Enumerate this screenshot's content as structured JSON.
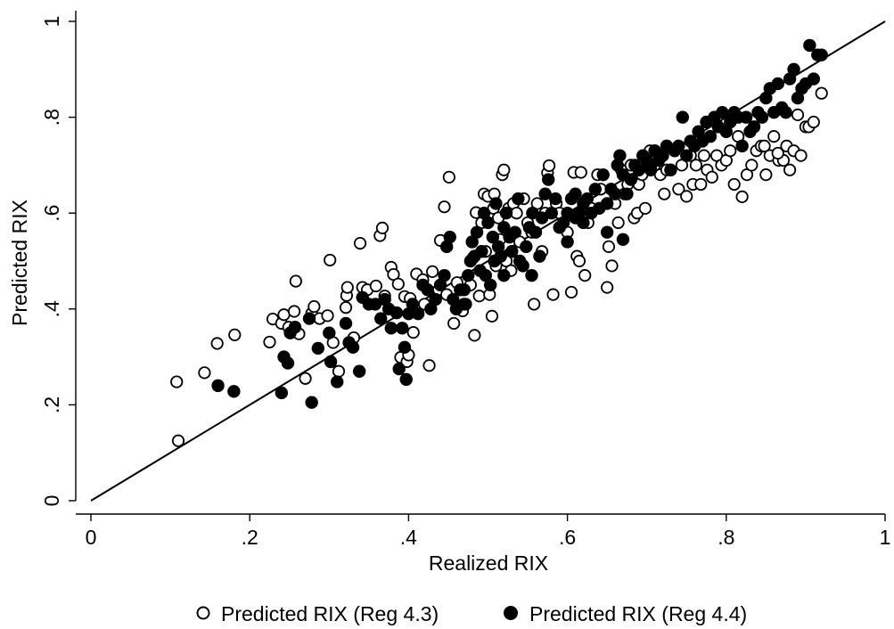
{
  "chart_data": {
    "type": "scatter",
    "title": "",
    "xlabel": "Realized RIX",
    "ylabel": "Predicted RIX",
    "xlim": [
      0,
      1
    ],
    "ylim": [
      0,
      1
    ],
    "x_ticks": [
      "0",
      ".2",
      ".4",
      ".6",
      ".8",
      "1"
    ],
    "y_ticks": [
      "0",
      ".2",
      ".4",
      ".6",
      ".8",
      "1"
    ],
    "reference_line": {
      "from": [
        0,
        0
      ],
      "to": [
        1,
        1
      ]
    },
    "grid": false,
    "legend_position": "bottom",
    "series": [
      {
        "name": "Predicted RIX (Reg 4.3)",
        "marker": "hollow-circle",
        "color": "#000000",
        "points": [
          [
            0.11,
            0.125
          ],
          [
            0.108,
            0.248
          ],
          [
            0.143,
            0.267
          ],
          [
            0.159,
            0.328
          ],
          [
            0.181,
            0.346
          ],
          [
            0.225,
            0.331
          ],
          [
            0.229,
            0.379
          ],
          [
            0.24,
            0.37
          ],
          [
            0.243,
            0.388
          ],
          [
            0.249,
            0.362
          ],
          [
            0.256,
            0.395
          ],
          [
            0.258,
            0.458
          ],
          [
            0.262,
            0.348
          ],
          [
            0.27,
            0.255
          ],
          [
            0.278,
            0.391
          ],
          [
            0.281,
            0.405
          ],
          [
            0.288,
            0.38
          ],
          [
            0.298,
            0.386
          ],
          [
            0.301,
            0.502
          ],
          [
            0.305,
            0.33
          ],
          [
            0.312,
            0.27
          ],
          [
            0.321,
            0.403
          ],
          [
            0.322,
            0.428
          ],
          [
            0.323,
            0.445
          ],
          [
            0.331,
            0.34
          ],
          [
            0.339,
            0.537
          ],
          [
            0.342,
            0.445
          ],
          [
            0.348,
            0.44
          ],
          [
            0.359,
            0.448
          ],
          [
            0.364,
            0.553
          ],
          [
            0.367,
            0.569
          ],
          [
            0.37,
            0.427
          ],
          [
            0.378,
            0.487
          ],
          [
            0.381,
            0.472
          ],
          [
            0.387,
            0.452
          ],
          [
            0.39,
            0.299
          ],
          [
            0.395,
            0.426
          ],
          [
            0.398,
            0.29
          ],
          [
            0.4,
            0.304
          ],
          [
            0.402,
            0.422
          ],
          [
            0.406,
            0.351
          ],
          [
            0.41,
            0.473
          ],
          [
            0.418,
            0.461
          ],
          [
            0.42,
            0.41
          ],
          [
            0.426,
            0.282
          ],
          [
            0.43,
            0.478
          ],
          [
            0.438,
            0.44
          ],
          [
            0.44,
            0.543
          ],
          [
            0.445,
            0.613
          ],
          [
            0.448,
            0.43
          ],
          [
            0.451,
            0.675
          ],
          [
            0.457,
            0.37
          ],
          [
            0.461,
            0.455
          ],
          [
            0.468,
            0.396
          ],
          [
            0.472,
            0.41
          ],
          [
            0.478,
            0.45
          ],
          [
            0.481,
            0.506
          ],
          [
            0.483,
            0.345
          ],
          [
            0.485,
            0.601
          ],
          [
            0.489,
            0.427
          ],
          [
            0.492,
            0.58
          ],
          [
            0.495,
            0.64
          ],
          [
            0.497,
            0.52
          ],
          [
            0.5,
            0.635
          ],
          [
            0.502,
            0.43
          ],
          [
            0.505,
            0.385
          ],
          [
            0.507,
            0.61
          ],
          [
            0.508,
            0.64
          ],
          [
            0.51,
            0.49
          ],
          [
            0.513,
            0.59
          ],
          [
            0.515,
            0.545
          ],
          [
            0.518,
            0.68
          ],
          [
            0.52,
            0.69
          ],
          [
            0.523,
            0.5
          ],
          [
            0.526,
            0.61
          ],
          [
            0.529,
            0.48
          ],
          [
            0.532,
            0.62
          ],
          [
            0.536,
            0.6
          ],
          [
            0.54,
            0.54
          ],
          [
            0.545,
            0.63
          ],
          [
            0.55,
            0.58
          ],
          [
            0.555,
            0.56
          ],
          [
            0.558,
            0.41
          ],
          [
            0.562,
            0.62
          ],
          [
            0.568,
            0.52
          ],
          [
            0.572,
            0.6
          ],
          [
            0.575,
            0.684
          ],
          [
            0.577,
            0.699
          ],
          [
            0.582,
            0.43
          ],
          [
            0.586,
            0.62
          ],
          [
            0.59,
            0.6
          ],
          [
            0.6,
            0.56
          ],
          [
            0.605,
            0.435
          ],
          [
            0.608,
            0.685
          ],
          [
            0.612,
            0.51
          ],
          [
            0.615,
            0.5
          ],
          [
            0.617,
            0.685
          ],
          [
            0.622,
            0.47
          ],
          [
            0.626,
            0.58
          ],
          [
            0.63,
            0.61
          ],
          [
            0.638,
            0.68
          ],
          [
            0.642,
            0.65
          ],
          [
            0.65,
            0.445
          ],
          [
            0.652,
            0.53
          ],
          [
            0.656,
            0.49
          ],
          [
            0.66,
            0.62
          ],
          [
            0.664,
            0.58
          ],
          [
            0.668,
            0.69
          ],
          [
            0.672,
            0.64
          ],
          [
            0.676,
            0.66
          ],
          [
            0.68,
            0.7
          ],
          [
            0.684,
            0.59
          ],
          [
            0.688,
            0.6
          ],
          [
            0.69,
            0.66
          ],
          [
            0.694,
            0.68
          ],
          [
            0.698,
            0.61
          ],
          [
            0.704,
            0.73
          ],
          [
            0.71,
            0.7
          ],
          [
            0.717,
            0.68
          ],
          [
            0.722,
            0.64
          ],
          [
            0.725,
            0.69
          ],
          [
            0.73,
            0.69
          ],
          [
            0.74,
            0.65
          ],
          [
            0.744,
            0.7
          ],
          [
            0.75,
            0.635
          ],
          [
            0.755,
            0.72
          ],
          [
            0.758,
            0.66
          ],
          [
            0.762,
            0.7
          ],
          [
            0.768,
            0.66
          ],
          [
            0.772,
            0.72
          ],
          [
            0.776,
            0.69
          ],
          [
            0.782,
            0.675
          ],
          [
            0.788,
            0.72
          ],
          [
            0.794,
            0.7
          ],
          [
            0.8,
            0.71
          ],
          [
            0.805,
            0.73
          ],
          [
            0.81,
            0.66
          ],
          [
            0.815,
            0.76
          ],
          [
            0.82,
            0.634
          ],
          [
            0.826,
            0.68
          ],
          [
            0.832,
            0.7
          ],
          [
            0.838,
            0.73
          ],
          [
            0.844,
            0.74
          ],
          [
            0.85,
            0.68
          ],
          [
            0.855,
            0.72
          ],
          [
            0.86,
            0.76
          ],
          [
            0.866,
            0.71
          ],
          [
            0.872,
            0.71
          ],
          [
            0.876,
            0.74
          ],
          [
            0.88,
            0.69
          ],
          [
            0.885,
            0.73
          ],
          [
            0.89,
            0.805
          ],
          [
            0.894,
            0.72
          ],
          [
            0.9,
            0.78
          ],
          [
            0.904,
            0.78
          ],
          [
            0.91,
            0.79
          ],
          [
            0.92,
            0.85
          ],
          [
            0.865,
            0.725
          ],
          [
            0.848,
            0.74
          ]
        ]
      },
      {
        "name": "Predicted RIX (Reg 4.4)",
        "marker": "filled-circle",
        "color": "#000000",
        "points": [
          [
            0.16,
            0.24
          ],
          [
            0.18,
            0.228
          ],
          [
            0.24,
            0.225
          ],
          [
            0.243,
            0.3
          ],
          [
            0.248,
            0.287
          ],
          [
            0.251,
            0.35
          ],
          [
            0.257,
            0.362
          ],
          [
            0.275,
            0.38
          ],
          [
            0.278,
            0.205
          ],
          [
            0.286,
            0.318
          ],
          [
            0.3,
            0.35
          ],
          [
            0.302,
            0.29
          ],
          [
            0.31,
            0.248
          ],
          [
            0.321,
            0.37
          ],
          [
            0.325,
            0.33
          ],
          [
            0.33,
            0.32
          ],
          [
            0.338,
            0.27
          ],
          [
            0.342,
            0.424
          ],
          [
            0.35,
            0.41
          ],
          [
            0.358,
            0.41
          ],
          [
            0.365,
            0.38
          ],
          [
            0.37,
            0.42
          ],
          [
            0.375,
            0.4
          ],
          [
            0.378,
            0.36
          ],
          [
            0.385,
            0.392
          ],
          [
            0.388,
            0.275
          ],
          [
            0.392,
            0.36
          ],
          [
            0.395,
            0.32
          ],
          [
            0.397,
            0.253
          ],
          [
            0.4,
            0.39
          ],
          [
            0.405,
            0.41
          ],
          [
            0.412,
            0.39
          ],
          [
            0.418,
            0.45
          ],
          [
            0.424,
            0.44
          ],
          [
            0.428,
            0.4
          ],
          [
            0.434,
            0.42
          ],
          [
            0.44,
            0.45
          ],
          [
            0.445,
            0.47
          ],
          [
            0.448,
            0.53
          ],
          [
            0.452,
            0.55
          ],
          [
            0.456,
            0.42
          ],
          [
            0.46,
            0.4
          ],
          [
            0.465,
            0.44
          ],
          [
            0.47,
            0.41
          ],
          [
            0.475,
            0.47
          ],
          [
            0.478,
            0.5
          ],
          [
            0.48,
            0.54
          ],
          [
            0.483,
            0.51
          ],
          [
            0.486,
            0.56
          ],
          [
            0.49,
            0.48
          ],
          [
            0.492,
            0.52
          ],
          [
            0.495,
            0.6
          ],
          [
            0.497,
            0.47
          ],
          [
            0.5,
            0.58
          ],
          [
            0.503,
            0.45
          ],
          [
            0.506,
            0.55
          ],
          [
            0.508,
            0.5
          ],
          [
            0.51,
            0.62
          ],
          [
            0.513,
            0.53
          ],
          [
            0.516,
            0.51
          ],
          [
            0.52,
            0.57
          ],
          [
            0.523,
            0.6
          ],
          [
            0.527,
            0.55
          ],
          [
            0.53,
            0.52
          ],
          [
            0.534,
            0.56
          ],
          [
            0.538,
            0.63
          ],
          [
            0.54,
            0.5
          ],
          [
            0.544,
            0.49
          ],
          [
            0.548,
            0.53
          ],
          [
            0.552,
            0.57
          ],
          [
            0.556,
            0.6
          ],
          [
            0.56,
            0.56
          ],
          [
            0.565,
            0.51
          ],
          [
            0.568,
            0.59
          ],
          [
            0.572,
            0.64
          ],
          [
            0.576,
            0.67
          ],
          [
            0.58,
            0.6
          ],
          [
            0.585,
            0.63
          ],
          [
            0.59,
            0.57
          ],
          [
            0.595,
            0.58
          ],
          [
            0.6,
            0.6
          ],
          [
            0.605,
            0.63
          ],
          [
            0.61,
            0.64
          ],
          [
            0.615,
            0.6
          ],
          [
            0.62,
            0.58
          ],
          [
            0.625,
            0.63
          ],
          [
            0.63,
            0.6
          ],
          [
            0.635,
            0.65
          ],
          [
            0.64,
            0.61
          ],
          [
            0.645,
            0.68
          ],
          [
            0.65,
            0.62
          ],
          [
            0.655,
            0.65
          ],
          [
            0.66,
            0.64
          ],
          [
            0.663,
            0.7
          ],
          [
            0.666,
            0.72
          ],
          [
            0.67,
            0.68
          ],
          [
            0.675,
            0.64
          ],
          [
            0.68,
            0.67
          ],
          [
            0.685,
            0.7
          ],
          [
            0.69,
            0.69
          ],
          [
            0.695,
            0.72
          ],
          [
            0.7,
            0.71
          ],
          [
            0.705,
            0.7
          ],
          [
            0.71,
            0.73
          ],
          [
            0.715,
            0.71
          ],
          [
            0.72,
            0.72
          ],
          [
            0.725,
            0.74
          ],
          [
            0.73,
            0.69
          ],
          [
            0.735,
            0.73
          ],
          [
            0.74,
            0.74
          ],
          [
            0.745,
            0.8
          ],
          [
            0.75,
            0.72
          ],
          [
            0.755,
            0.75
          ],
          [
            0.76,
            0.74
          ],
          [
            0.765,
            0.77
          ],
          [
            0.77,
            0.75
          ],
          [
            0.775,
            0.79
          ],
          [
            0.78,
            0.76
          ],
          [
            0.785,
            0.8
          ],
          [
            0.79,
            0.78
          ],
          [
            0.795,
            0.81
          ],
          [
            0.8,
            0.77
          ],
          [
            0.805,
            0.79
          ],
          [
            0.81,
            0.81
          ],
          [
            0.815,
            0.8
          ],
          [
            0.82,
            0.74
          ],
          [
            0.825,
            0.8
          ],
          [
            0.83,
            0.77
          ],
          [
            0.835,
            0.78
          ],
          [
            0.84,
            0.81
          ],
          [
            0.845,
            0.8
          ],
          [
            0.85,
            0.84
          ],
          [
            0.855,
            0.86
          ],
          [
            0.86,
            0.81
          ],
          [
            0.865,
            0.87
          ],
          [
            0.87,
            0.82
          ],
          [
            0.875,
            0.81
          ],
          [
            0.88,
            0.88
          ],
          [
            0.885,
            0.9
          ],
          [
            0.89,
            0.84
          ],
          [
            0.895,
            0.86
          ],
          [
            0.9,
            0.87
          ],
          [
            0.905,
            0.95
          ],
          [
            0.91,
            0.88
          ],
          [
            0.915,
            0.93
          ],
          [
            0.92,
            0.93
          ],
          [
            0.65,
            0.56
          ],
          [
            0.67,
            0.545
          ],
          [
            0.6,
            0.54
          ],
          [
            0.555,
            0.47
          ],
          [
            0.47,
            0.44
          ],
          [
            0.52,
            0.47
          ],
          [
            0.61,
            0.59
          ],
          [
            0.62,
            0.62
          ],
          [
            0.705,
            0.69
          ]
        ]
      }
    ]
  }
}
